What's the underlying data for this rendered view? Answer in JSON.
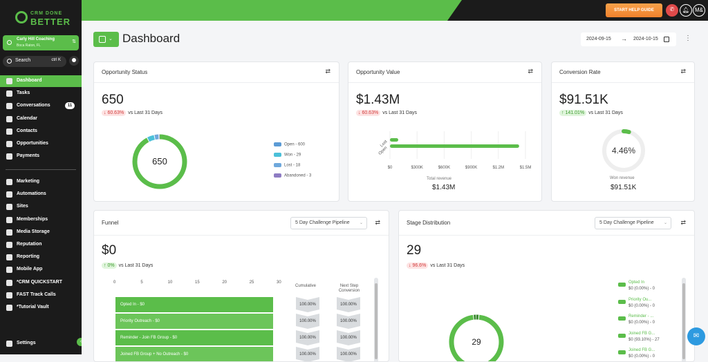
{
  "brand": {
    "line1": "CRM DONE",
    "line2": "BETTER"
  },
  "account": {
    "name": "Carly Hill Coaching",
    "location": "Boca Raton, FL"
  },
  "search": {
    "label": "Search",
    "shortcut": "ctrl K"
  },
  "nav": {
    "items": [
      {
        "label": "Dashboard",
        "icon": "dashboard-icon",
        "active": true
      },
      {
        "label": "Tasks",
        "icon": "tasks-icon"
      },
      {
        "label": "Conversations",
        "icon": "chat-icon",
        "badge": "11"
      },
      {
        "label": "Calendar",
        "icon": "calendar-icon"
      },
      {
        "label": "Contacts",
        "icon": "contacts-icon"
      },
      {
        "label": "Opportunities",
        "icon": "opportunities-icon"
      },
      {
        "label": "Payments",
        "icon": "payments-icon"
      }
    ],
    "items2": [
      {
        "label": "Marketing",
        "icon": "marketing-icon"
      },
      {
        "label": "Automations",
        "icon": "automations-icon"
      },
      {
        "label": "Sites",
        "icon": "sites-icon"
      },
      {
        "label": "Memberships",
        "icon": "memberships-icon"
      },
      {
        "label": "Media Storage",
        "icon": "media-icon"
      },
      {
        "label": "Reputation",
        "icon": "reputation-icon"
      },
      {
        "label": "Reporting",
        "icon": "reporting-icon"
      },
      {
        "label": "Mobile App",
        "icon": "mobile-icon"
      },
      {
        "label": "*CRM QUICKSTART",
        "icon": "link-icon"
      },
      {
        "label": "FAST Track Calls",
        "icon": "link-icon"
      },
      {
        "label": "*Tutorial Vault",
        "icon": "link-icon"
      }
    ],
    "settings": "Settings"
  },
  "topbar": {
    "help": "START HELP GUIDE",
    "avatar": "M&"
  },
  "page": {
    "title": "Dashboard",
    "date_from": "2024-09-15",
    "date_to": "2024-10-15"
  },
  "cards": {
    "opp_status": {
      "title": "Opportunity Status",
      "value": "650",
      "delta": "60.63%",
      "delta_dir": "down",
      "compare": "vs Last 31 Days",
      "center": "650",
      "legend": [
        {
          "label": "Open - 600",
          "color": "#5b9bd5"
        },
        {
          "label": "Won - 29",
          "color": "#4bc0d9"
        },
        {
          "label": "Lost - 18",
          "color": "#6fa8dc"
        },
        {
          "label": "Abandoned - 3",
          "color": "#8e7cc3"
        }
      ]
    },
    "opp_value": {
      "title": "Opportunity Value",
      "value": "$1.43M",
      "delta": "60.63%",
      "delta_dir": "down",
      "compare": "vs Last 31 Days",
      "total_label": "Total revenue",
      "total": "$1.43M"
    },
    "conv_rate": {
      "title": "Conversion Rate",
      "value": "$91.51K",
      "delta": "141.01%",
      "delta_dir": "up",
      "compare": "vs Last 31 Days",
      "percent": "4.46%",
      "won_label": "Won revenue",
      "won": "$91.51K"
    },
    "funnel": {
      "title": "Funnel",
      "pipeline": "5 Day Challenge Pipeline",
      "value": "$0",
      "delta": "0%",
      "delta_dir": "up",
      "compare": "vs Last 31 Days",
      "col_cumulative": "Cumulative",
      "col_next": "Next Step Conversion",
      "stages": [
        {
          "label": "Opted In - $0",
          "cum": "100.00%",
          "next": "100.00%"
        },
        {
          "label": "Priority Outreach - $0",
          "cum": "100.00%",
          "next": "100.00%"
        },
        {
          "label": "Reminder - Join FB Group - $0",
          "cum": "100.00%",
          "next": "100.00%"
        },
        {
          "label": "Joined FB Group + No Outreach - $0",
          "cum": "100.00%",
          "next": "100.00%"
        }
      ]
    },
    "stage_dist": {
      "title": "Stage Distribution",
      "pipeline": "5 Day Challenge Pipeline",
      "value": "29",
      "delta": "96.6%",
      "delta_dir": "down",
      "compare": "vs Last 31 Days",
      "center": "29",
      "legend": [
        {
          "name": "Opted In",
          "detail": "$0 (0.00%) - 0"
        },
        {
          "name": "Priority Ou...",
          "detail": "$0 (0.00%) - 0"
        },
        {
          "name": "Reminder - ...",
          "detail": "$0 (0.00%) - 0"
        },
        {
          "name": "Joined FB G...",
          "detail": "$0 (93.10%) - 27"
        },
        {
          "name": "Joined FB G...",
          "detail": "$0 (0.00%) - 0"
        }
      ]
    }
  },
  "chart_data": [
    {
      "type": "pie",
      "title": "Opportunity Status",
      "categories": [
        "Open",
        "Won",
        "Lost",
        "Abandoned"
      ],
      "values": [
        600,
        29,
        18,
        3
      ]
    },
    {
      "type": "bar",
      "title": "Opportunity Value",
      "orientation": "horizontal",
      "categories": [
        "Lost",
        "Open"
      ],
      "values": [
        0.02,
        1.43
      ],
      "xlim": [
        0,
        1.5
      ],
      "xticks": [
        "$0",
        "$300K",
        "$600K",
        "$900K",
        "$1.2M",
        "$1.5M"
      ]
    },
    {
      "type": "pie",
      "title": "Conversion Rate",
      "values": [
        4.46
      ]
    },
    {
      "type": "bar",
      "title": "Funnel",
      "orientation": "horizontal",
      "xticks": [
        "0",
        "5",
        "10",
        "15",
        "20",
        "25",
        "30"
      ],
      "xlim": [
        0,
        30
      ],
      "categories": [
        "Opted In",
        "Priority Outreach",
        "Reminder - Join FB Group",
        "Joined FB Group + No Outreach"
      ],
      "values": [
        29,
        29,
        29,
        29
      ]
    },
    {
      "type": "pie",
      "title": "Stage Distribution",
      "categories": [
        "Opted In",
        "Priority Ou...",
        "Reminder - ...",
        "Joined FB G...",
        "Joined FB G..."
      ],
      "values": [
        0,
        0,
        0,
        27,
        0
      ]
    }
  ],
  "colors": {
    "brand": "#5bbd4a",
    "dark": "#1b1b1b"
  }
}
